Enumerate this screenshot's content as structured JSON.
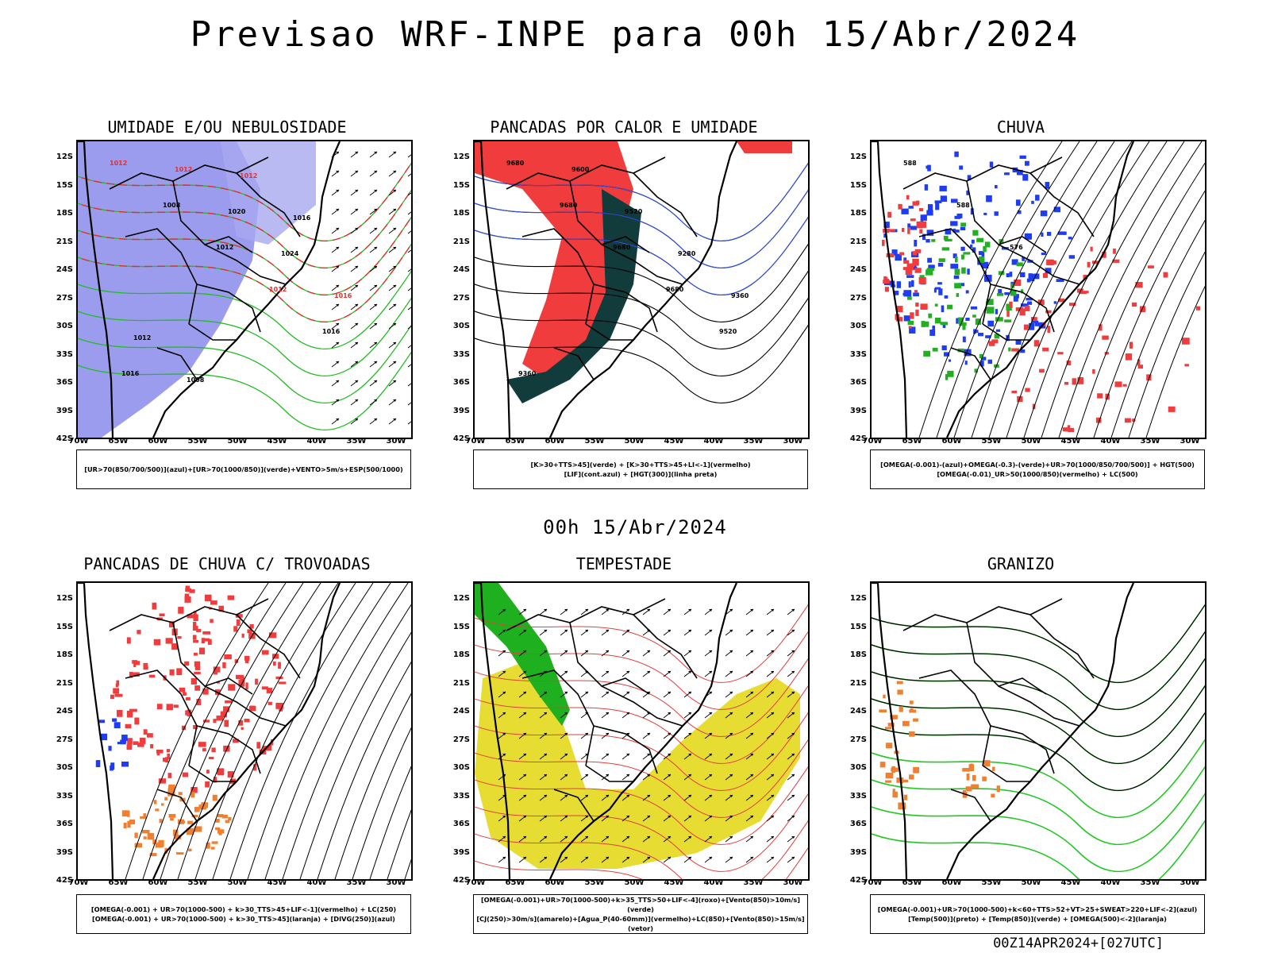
{
  "header": {
    "title": "Previsao WRF-INPE  para 00h 15/Abr/2024"
  },
  "mid_title": "00h 15/Abr/2024",
  "footer": "00Z14APR2024+[027UTC]",
  "axes": {
    "lat_labels": [
      "12S",
      "15S",
      "18S",
      "21S",
      "24S",
      "27S",
      "30S",
      "33S",
      "36S",
      "39S",
      "42S"
    ],
    "lon_labels": [
      "70W",
      "65W",
      "60W",
      "55W",
      "50W",
      "45W",
      "40W",
      "35W",
      "30W"
    ]
  },
  "panels": [
    {
      "id": "umidade",
      "title": "UMIDADE E/OU NEBULOSIDADE",
      "legend": [
        "[UR>70(850/700/500)](azul)+[UR>70(1000/850)](verde)+VENTO>5m/s+ESP(500/1000)"
      ],
      "contour_labels": [
        "1012",
        "1008",
        "1012",
        "1012",
        "1016",
        "1016",
        "1012",
        "1020",
        "1024",
        "1016",
        "1012",
        "1008",
        "1012",
        "1016"
      ]
    },
    {
      "id": "pancadas",
      "title": "PANCADAS POR CALOR E UMIDADE",
      "legend": [
        "[K>30+TTS>45](verde) + [K>30+TTS>45+LI<-1](vermelho)",
        "[LIF](cont.azul) + [HGT(300)](linha preta)"
      ],
      "contour_labels": [
        "9680",
        "9680",
        "9680",
        "9680",
        "9520",
        "9360",
        "9600",
        "9520",
        "9280",
        "9360"
      ]
    },
    {
      "id": "chuva",
      "title": "CHUVA",
      "legend": [
        "[OMEGA(-0.001)-(azul)+OMEGA(-0.3)-(verde)+UR>70(1000/850/700/500)] + HGT(500)",
        "[OMEGA(-0.01)_UR>50(1000/850)(vermelho) + LC(500)"
      ],
      "contour_labels": [
        "588",
        "588",
        "576"
      ]
    },
    {
      "id": "trovoadas",
      "title": "PANCADAS DE CHUVA C/ TROVOADAS",
      "legend": [
        "[OMEGA(-0.001) + UR>70(1000-500) + k>30_TTS>45+LIF<-1](vermelho) + LC(250)",
        "[OMEGA(-0.001) + UR>70(1000-500) + k>30_TTS>45](laranja) + [DIVG(250)](azul)"
      ],
      "contour_labels": []
    },
    {
      "id": "tempestade",
      "title": "TEMPESTADE",
      "legend": [
        "[OMEGA(-0.001)+UR>70(1000-500)+k>35_TTS>50+LIF<-4](roxo)+[Vento(850)>10m/s](verde)",
        "[CJ(250)>30m/s](amarelo)+[Agua_P(40-60mm)](vermelho)+LC(850)+[Vento(850)>15m/s](vetor)"
      ],
      "contour_labels": []
    },
    {
      "id": "granizo",
      "title": "GRANIZO",
      "legend": [
        "[OMEGA(-0.001)+UR>70(1000-500)+k<60+TTS>52+VT>25+SWEAT>220+LIF<-2](azul)",
        "[Temp(500)](preto) + [Temp(850)](verde) + [OMEGA(500)<-2](laranja)"
      ],
      "contour_labels": []
    }
  ]
}
